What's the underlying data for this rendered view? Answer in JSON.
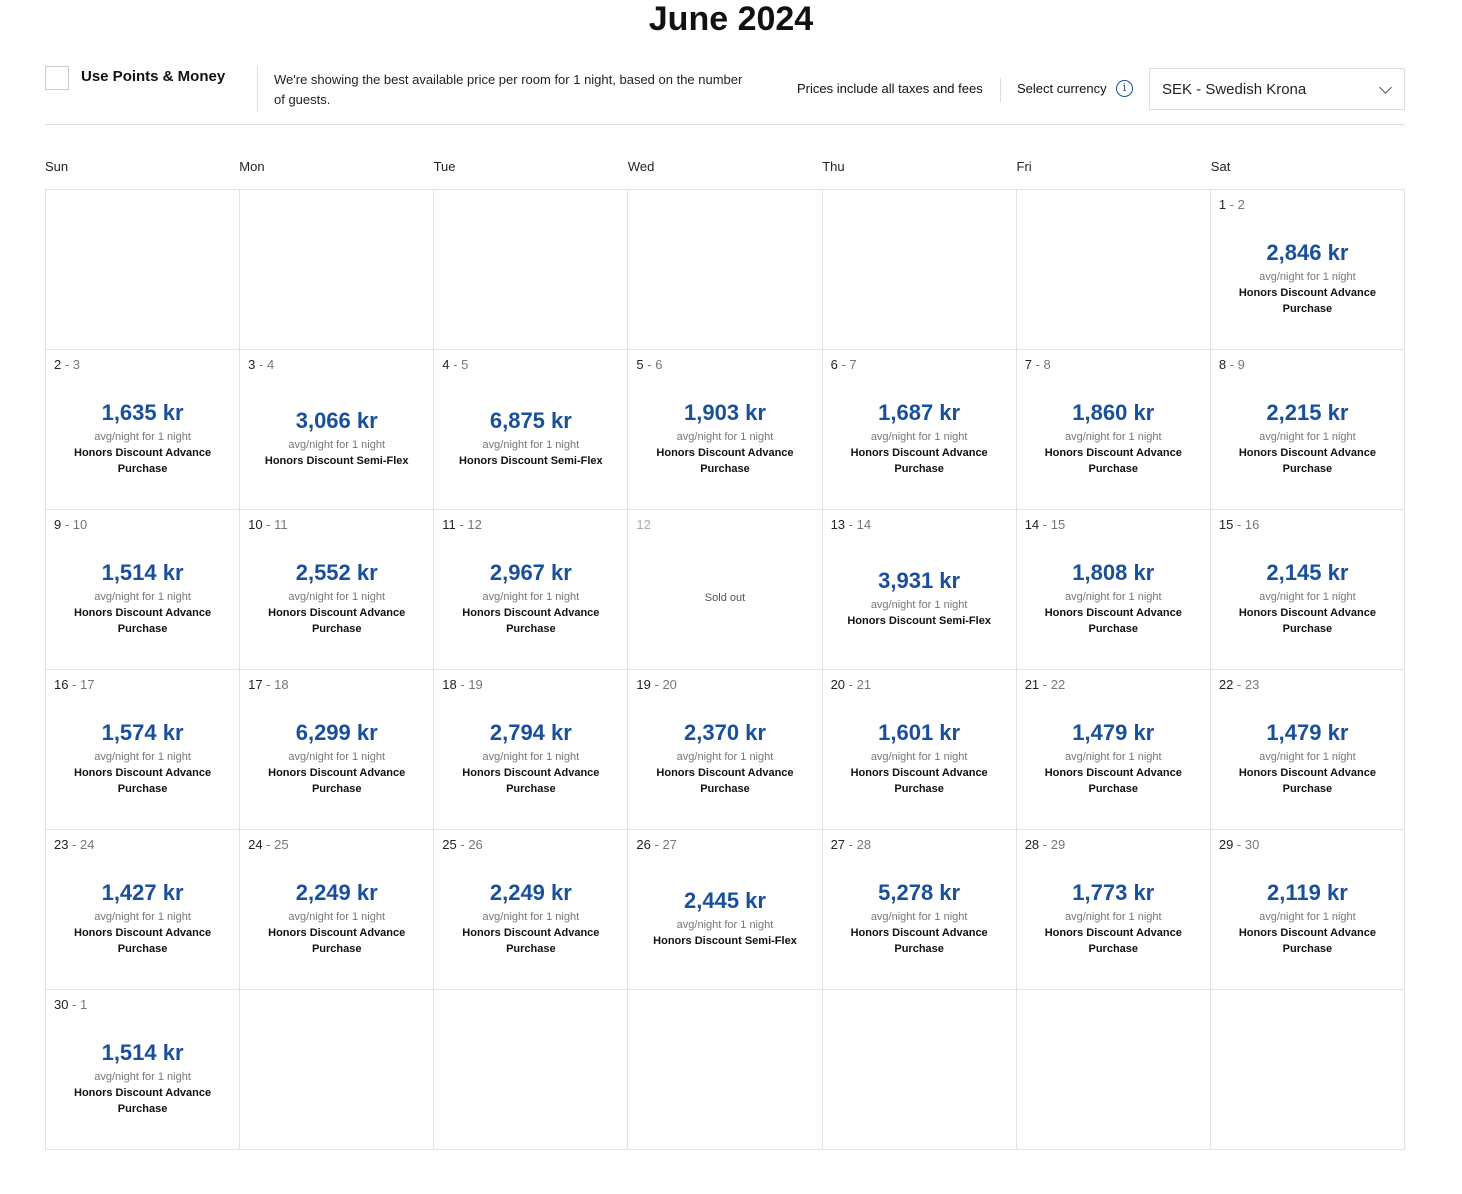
{
  "title": "June 2024",
  "points": {
    "label": "Use Points & Money",
    "checked": false
  },
  "description": "We're showing the best available price per room for 1 night, based on the number of guests.",
  "taxes_note": "Prices include all taxes and fees",
  "currency": {
    "label": "Select currency",
    "selected": "SEK - Swedish Krona",
    "icon": "info-icon"
  },
  "accent_color": "#1a4f9c",
  "weekdays": [
    "Sun",
    "Mon",
    "Tue",
    "Wed",
    "Thu",
    "Fri",
    "Sat"
  ],
  "avg_label": "avg/night for 1 night",
  "sold_out_label": "Sold out",
  "days": [
    null,
    null,
    null,
    null,
    null,
    null,
    {
      "from": "1",
      "to": "2",
      "price": "2,846 kr",
      "rate": "Honors Discount Advance Purchase"
    },
    {
      "from": "2",
      "to": "3",
      "price": "1,635 kr",
      "rate": "Honors Discount Advance Purchase"
    },
    {
      "from": "3",
      "to": "4",
      "price": "3,066 kr",
      "rate": "Honors Discount Semi-Flex"
    },
    {
      "from": "4",
      "to": "5",
      "price": "6,875 kr",
      "rate": "Honors Discount Semi-Flex"
    },
    {
      "from": "5",
      "to": "6",
      "price": "1,903 kr",
      "rate": "Honors Discount Advance Purchase"
    },
    {
      "from": "6",
      "to": "7",
      "price": "1,687 kr",
      "rate": "Honors Discount Advance Purchase"
    },
    {
      "from": "7",
      "to": "8",
      "price": "1,860 kr",
      "rate": "Honors Discount Advance Purchase"
    },
    {
      "from": "8",
      "to": "9",
      "price": "2,215 kr",
      "rate": "Honors Discount Advance Purchase"
    },
    {
      "from": "9",
      "to": "10",
      "price": "1,514 kr",
      "rate": "Honors Discount Advance Purchase"
    },
    {
      "from": "10",
      "to": "11",
      "price": "2,552 kr",
      "rate": "Honors Discount Advance Purchase"
    },
    {
      "from": "11",
      "to": "12",
      "price": "2,967 kr",
      "rate": "Honors Discount Advance Purchase"
    },
    {
      "from": "12",
      "sold_out": true
    },
    {
      "from": "13",
      "to": "14",
      "price": "3,931 kr",
      "rate": "Honors Discount Semi-Flex"
    },
    {
      "from": "14",
      "to": "15",
      "price": "1,808 kr",
      "rate": "Honors Discount Advance Purchase"
    },
    {
      "from": "15",
      "to": "16",
      "price": "2,145 kr",
      "rate": "Honors Discount Advance Purchase"
    },
    {
      "from": "16",
      "to": "17",
      "price": "1,574 kr",
      "rate": "Honors Discount Advance Purchase"
    },
    {
      "from": "17",
      "to": "18",
      "price": "6,299 kr",
      "rate": "Honors Discount Advance Purchase"
    },
    {
      "from": "18",
      "to": "19",
      "price": "2,794 kr",
      "rate": "Honors Discount Advance Purchase"
    },
    {
      "from": "19",
      "to": "20",
      "price": "2,370 kr",
      "rate": "Honors Discount Advance Purchase"
    },
    {
      "from": "20",
      "to": "21",
      "price": "1,601 kr",
      "rate": "Honors Discount Advance Purchase"
    },
    {
      "from": "21",
      "to": "22",
      "price": "1,479 kr",
      "rate": "Honors Discount Advance Purchase"
    },
    {
      "from": "22",
      "to": "23",
      "price": "1,479 kr",
      "rate": "Honors Discount Advance Purchase"
    },
    {
      "from": "23",
      "to": "24",
      "price": "1,427 kr",
      "rate": "Honors Discount Advance Purchase"
    },
    {
      "from": "24",
      "to": "25",
      "price": "2,249 kr",
      "rate": "Honors Discount Advance Purchase"
    },
    {
      "from": "25",
      "to": "26",
      "price": "2,249 kr",
      "rate": "Honors Discount Advance Purchase"
    },
    {
      "from": "26",
      "to": "27",
      "price": "2,445 kr",
      "rate": "Honors Discount Semi-Flex"
    },
    {
      "from": "27",
      "to": "28",
      "price": "5,278 kr",
      "rate": "Honors Discount Advance Purchase"
    },
    {
      "from": "28",
      "to": "29",
      "price": "1,773 kr",
      "rate": "Honors Discount Advance Purchase"
    },
    {
      "from": "29",
      "to": "30",
      "price": "2,119 kr",
      "rate": "Honors Discount Advance Purchase"
    },
    {
      "from": "30",
      "to": "1",
      "price": "1,514 kr",
      "rate": "Honors Discount Advance Purchase"
    },
    null,
    null,
    null,
    null,
    null,
    null
  ]
}
